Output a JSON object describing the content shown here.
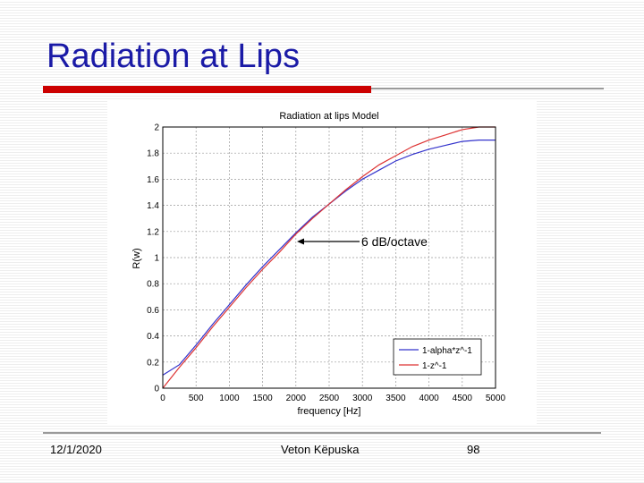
{
  "slide": {
    "title": "Radiation at Lips",
    "footer": {
      "date": "12/1/2020",
      "author": "Veton Këpuska",
      "page": "98"
    }
  },
  "colors": {
    "title": "#1a1aa6",
    "accent_bar": "#cc0000",
    "series_1": "#3333cc",
    "series_2": "#dd3333"
  },
  "chart_data": {
    "type": "line",
    "title": "Radiation at lips Model",
    "xlabel": "frequency [Hz]",
    "ylabel": "R(w)",
    "xlim": [
      0,
      5000
    ],
    "ylim": [
      0,
      2
    ],
    "xticks": [
      "0",
      "500",
      "1000",
      "1500",
      "2000",
      "2500",
      "3000",
      "3500",
      "4000",
      "4500",
      "5000"
    ],
    "yticks": [
      "0",
      "0.2",
      "0.4",
      "0.6",
      "0.8",
      "1",
      "1.2",
      "1.4",
      "1.6",
      "1.8",
      "2"
    ],
    "grid": true,
    "legend_position": "bottom-right",
    "annotation": {
      "text": "6 dB/octave",
      "arrow_to": [
        2000,
        1.14
      ]
    },
    "series": [
      {
        "name": "1-alpha*z^-1",
        "color": "#3333cc",
        "x": [
          0,
          250,
          500,
          750,
          1000,
          1250,
          1500,
          1750,
          2000,
          2250,
          2500,
          2750,
          3000,
          3250,
          3500,
          3750,
          4000,
          4250,
          4500,
          4750,
          5000
        ],
        "y": [
          0.1,
          0.18,
          0.33,
          0.49,
          0.64,
          0.79,
          0.93,
          1.06,
          1.19,
          1.31,
          1.41,
          1.51,
          1.6,
          1.67,
          1.74,
          1.79,
          1.83,
          1.86,
          1.89,
          1.9,
          1.9
        ]
      },
      {
        "name": "1-z^-1",
        "color": "#dd3333",
        "x": [
          0,
          250,
          500,
          750,
          1000,
          1250,
          1500,
          1750,
          2000,
          2250,
          2500,
          2750,
          3000,
          3250,
          3500,
          3750,
          4000,
          4250,
          4500,
          4750,
          5000
        ],
        "y": [
          0,
          0.16,
          0.31,
          0.47,
          0.62,
          0.77,
          0.91,
          1.04,
          1.18,
          1.3,
          1.41,
          1.52,
          1.62,
          1.71,
          1.78,
          1.85,
          1.9,
          1.94,
          1.98,
          2.0,
          2.0
        ]
      }
    ]
  }
}
